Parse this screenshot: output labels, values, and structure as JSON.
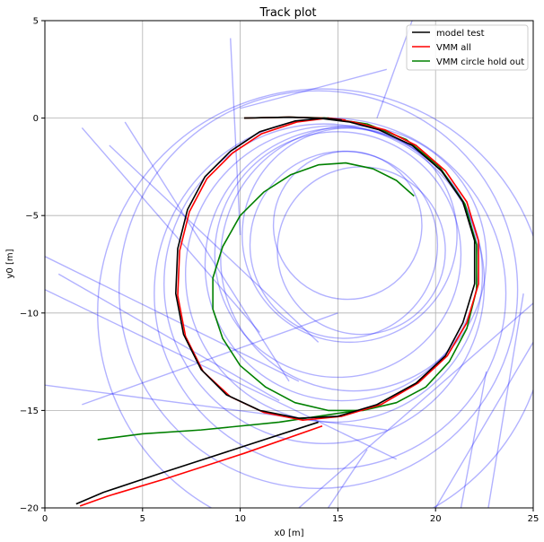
{
  "chart_data": {
    "type": "line",
    "title": "Track plot",
    "xlabel": "x0 [m]",
    "ylabel": "y0 [m]",
    "xlim": [
      0,
      25
    ],
    "ylim": [
      -20,
      5
    ],
    "xticks": [
      0,
      5,
      10,
      15,
      20,
      25
    ],
    "yticks": [
      5,
      0,
      -5,
      -10,
      -15,
      -20
    ],
    "xtick_labels": [
      "0",
      "5",
      "10",
      "15",
      "20",
      "25"
    ],
    "ytick_labels": [
      "5",
      "0",
      "−5",
      "−10",
      "−15",
      "−20"
    ],
    "grid": true,
    "legend_position": "top-right",
    "legend": [
      {
        "name": "model test",
        "color": "#000000"
      },
      {
        "name": "VMM all",
        "color": "#ff0000"
      },
      {
        "name": "VMM circle hold out",
        "color": "#008000"
      }
    ],
    "series": [
      {
        "name": "model test",
        "color": "#000000",
        "x": [
          10.2,
          12.5,
          14.0,
          15.6,
          17.1,
          18.8,
          20.3,
          21.4,
          22.0,
          22.0,
          21.4,
          20.5,
          19.0,
          17.0,
          15.0,
          13.0,
          11.0,
          9.3,
          8.0,
          7.1,
          6.7,
          6.8,
          7.3,
          8.2,
          9.5,
          11.0,
          12.8,
          14.3,
          15.2,
          14.0,
          10.0,
          6.0,
          3.0,
          1.6
        ],
        "y": [
          0.0,
          0.05,
          0.0,
          -0.2,
          -0.6,
          -1.4,
          -2.7,
          -4.3,
          -6.3,
          -8.5,
          -10.5,
          -12.2,
          -13.6,
          -14.7,
          -15.3,
          -15.4,
          -15.0,
          -14.2,
          -12.9,
          -11.1,
          -9.0,
          -6.7,
          -4.7,
          -3.0,
          -1.7,
          -0.7,
          -0.15,
          0.0,
          -0.1,
          -15.6,
          -16.9,
          -18.2,
          -19.2,
          -19.8
        ]
      },
      {
        "name": "VMM all",
        "color": "#ff0000",
        "x": [
          10.2,
          12.5,
          14.2,
          15.8,
          17.4,
          19.0,
          20.5,
          21.6,
          22.2,
          22.2,
          21.6,
          20.6,
          19.1,
          17.2,
          15.2,
          13.2,
          11.2,
          9.5,
          8.1,
          7.2,
          6.8,
          6.9,
          7.4,
          8.3,
          9.6,
          11.1,
          12.9,
          14.5,
          15.4,
          14.2,
          10.2,
          6.2,
          3.2,
          1.8
        ],
        "y": [
          0.0,
          0.05,
          0.0,
          -0.2,
          -0.6,
          -1.4,
          -2.7,
          -4.3,
          -6.3,
          -8.5,
          -10.5,
          -12.2,
          -13.6,
          -14.7,
          -15.3,
          -15.5,
          -15.1,
          -14.3,
          -13.0,
          -11.2,
          -9.1,
          -6.8,
          -4.8,
          -3.1,
          -1.8,
          -0.8,
          -0.2,
          0.0,
          -0.1,
          -15.8,
          -17.2,
          -18.5,
          -19.4,
          -19.9
        ]
      },
      {
        "name": "VMM circle hold out",
        "color": "#008000",
        "x": [
          10.2,
          12.5,
          14.5,
          16.5,
          18.5,
          20.2,
          21.5,
          22.1,
          22.1,
          21.6,
          20.7,
          19.5,
          18.0,
          16.3,
          14.5,
          12.8,
          11.3,
          10.0,
          9.1,
          8.6,
          8.6,
          9.1,
          10.0,
          11.2,
          12.6,
          14.0,
          15.4,
          16.8,
          18.0,
          18.9,
          16.0,
          12.0,
          8.0,
          5.0,
          2.7
        ],
        "y": [
          0.0,
          0.05,
          0.0,
          -0.3,
          -1.1,
          -2.5,
          -4.4,
          -6.5,
          -8.8,
          -10.8,
          -12.5,
          -13.8,
          -14.6,
          -15.0,
          -15.0,
          -14.6,
          -13.8,
          -12.7,
          -11.3,
          -9.8,
          -8.2,
          -6.6,
          -5.0,
          -3.8,
          -2.9,
          -2.4,
          -2.3,
          -2.6,
          -3.2,
          -4.0,
          -15.0,
          -15.6,
          -16.0,
          -16.2,
          -16.5
        ]
      }
    ],
    "background_tracks": {
      "color": "#0000ff",
      "opacity": 0.3,
      "circles": [
        {
          "cx": 15.5,
          "cy": -5.5,
          "r": 3.8
        },
        {
          "cx": 15.3,
          "cy": -6.5,
          "r": 4.8
        },
        {
          "cx": 15.6,
          "cy": -6.0,
          "r": 5.5
        },
        {
          "cx": 15.0,
          "cy": -7.0,
          "r": 6.3
        },
        {
          "cx": 15.2,
          "cy": -7.5,
          "r": 7.0
        },
        {
          "cx": 14.8,
          "cy": -8.0,
          "r": 7.6
        },
        {
          "cx": 14.3,
          "cy": -8.5,
          "r": 8.2
        },
        {
          "cx": 14.6,
          "cy": -9.0,
          "r": 9.0
        },
        {
          "cx": 14.0,
          "cy": -8.8,
          "r": 10.2
        },
        {
          "cx": 14.2,
          "cy": -10.0,
          "r": 11.5
        },
        {
          "cx": 15.8,
          "cy": -7.2,
          "r": 6.8
        },
        {
          "cx": 16.2,
          "cy": -6.8,
          "r": 4.3
        }
      ],
      "lines": [
        {
          "x": [
            9.5,
            10.0
          ],
          "y": [
            4.1,
            -6.0
          ]
        },
        {
          "x": [
            10.0,
            17.5
          ],
          "y": [
            0.5,
            2.5
          ]
        },
        {
          "x": [
            17.0,
            18.8
          ],
          "y": [
            0.0,
            5.0
          ]
        },
        {
          "x": [
            1.9,
            11.0
          ],
          "y": [
            -0.5,
            -11.0
          ]
        },
        {
          "x": [
            4.1,
            12.5
          ],
          "y": [
            -0.2,
            -13.5
          ]
        },
        {
          "x": [
            3.3,
            14.0
          ],
          "y": [
            -1.4,
            -11.5
          ]
        },
        {
          "x": [
            0.0,
            13.0
          ],
          "y": [
            -7.1,
            -13.5
          ]
        },
        {
          "x": [
            0.7,
            12.0
          ],
          "y": [
            -8.0,
            -14.5
          ]
        },
        {
          "x": [
            0.0,
            18.0
          ],
          "y": [
            -8.8,
            -17.5
          ]
        },
        {
          "x": [
            0.0,
            17.5
          ],
          "y": [
            -13.7,
            -16.0
          ]
        },
        {
          "x": [
            1.9,
            15.0
          ],
          "y": [
            -14.7,
            -10.0
          ]
        },
        {
          "x": [
            13.0,
            25.0
          ],
          "y": [
            -20.0,
            -9.5
          ]
        },
        {
          "x": [
            20.0,
            25.0
          ],
          "y": [
            -20.0,
            -11.5
          ]
        },
        {
          "x": [
            21.3,
            22.6
          ],
          "y": [
            -20.0,
            -13.0
          ]
        },
        {
          "x": [
            22.7,
            24.5
          ],
          "y": [
            -20.0,
            -9.0
          ]
        },
        {
          "x": [
            14.5,
            16.5
          ],
          "y": [
            -20.0,
            -17.0
          ]
        }
      ]
    }
  }
}
